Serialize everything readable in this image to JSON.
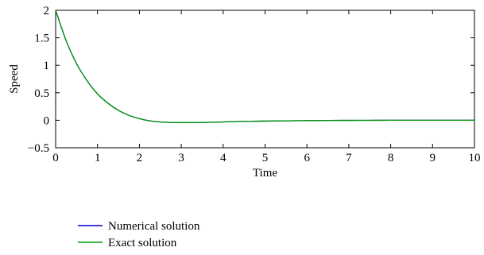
{
  "chart_data": {
    "type": "line",
    "title": "",
    "xlabel": "Time",
    "ylabel": "Speed",
    "xlim": [
      0,
      10
    ],
    "ylim": [
      -0.5,
      2
    ],
    "xticks": [
      0,
      1,
      2,
      3,
      4,
      5,
      6,
      7,
      8,
      9,
      10
    ],
    "yticks": [
      2,
      1.5,
      1,
      0.5,
      0,
      -0.5
    ],
    "xtick_labels": [
      "0",
      "1",
      "2",
      "3",
      "4",
      "5",
      "6",
      "7",
      "8",
      "9",
      "10"
    ],
    "ytick_labels": [
      "2",
      "1.5",
      "1",
      "0.5",
      "0",
      "−0.5"
    ],
    "grid": false,
    "legend_position": "bottom-left, below plot",
    "series": [
      {
        "name": "Numerical solution",
        "color": "#0000cc",
        "x": [
          0,
          0.25,
          0.5,
          0.75,
          1,
          1.25,
          1.5,
          1.75,
          2,
          2.25,
          2.5,
          2.75,
          3,
          3.5,
          4,
          4.5,
          5,
          5.5,
          6,
          6.5,
          7,
          7.5,
          8,
          8.5,
          9,
          9.5,
          10
        ],
        "y": [
          2,
          1.45,
          1.03,
          0.72,
          0.48,
          0.31,
          0.18,
          0.09,
          0.03,
          -0.01,
          -0.03,
          -0.04,
          -0.04,
          -0.04,
          -0.03,
          -0.02,
          -0.015,
          -0.01,
          -0.006,
          -0.003,
          -0.002,
          -0.001,
          0,
          0,
          0,
          0,
          0
        ]
      },
      {
        "name": "Exact solution",
        "color": "#009900",
        "x": [
          0,
          0.25,
          0.5,
          0.75,
          1,
          1.25,
          1.5,
          1.75,
          2,
          2.25,
          2.5,
          2.75,
          3,
          3.5,
          4,
          4.5,
          5,
          5.5,
          6,
          6.5,
          7,
          7.5,
          8,
          8.5,
          9,
          9.5,
          10
        ],
        "y": [
          2,
          1.45,
          1.03,
          0.72,
          0.48,
          0.31,
          0.18,
          0.09,
          0.03,
          -0.01,
          -0.03,
          -0.04,
          -0.04,
          -0.04,
          -0.03,
          -0.02,
          -0.015,
          -0.01,
          -0.006,
          -0.003,
          -0.002,
          -0.001,
          0,
          0,
          0,
          0,
          0
        ]
      }
    ]
  }
}
